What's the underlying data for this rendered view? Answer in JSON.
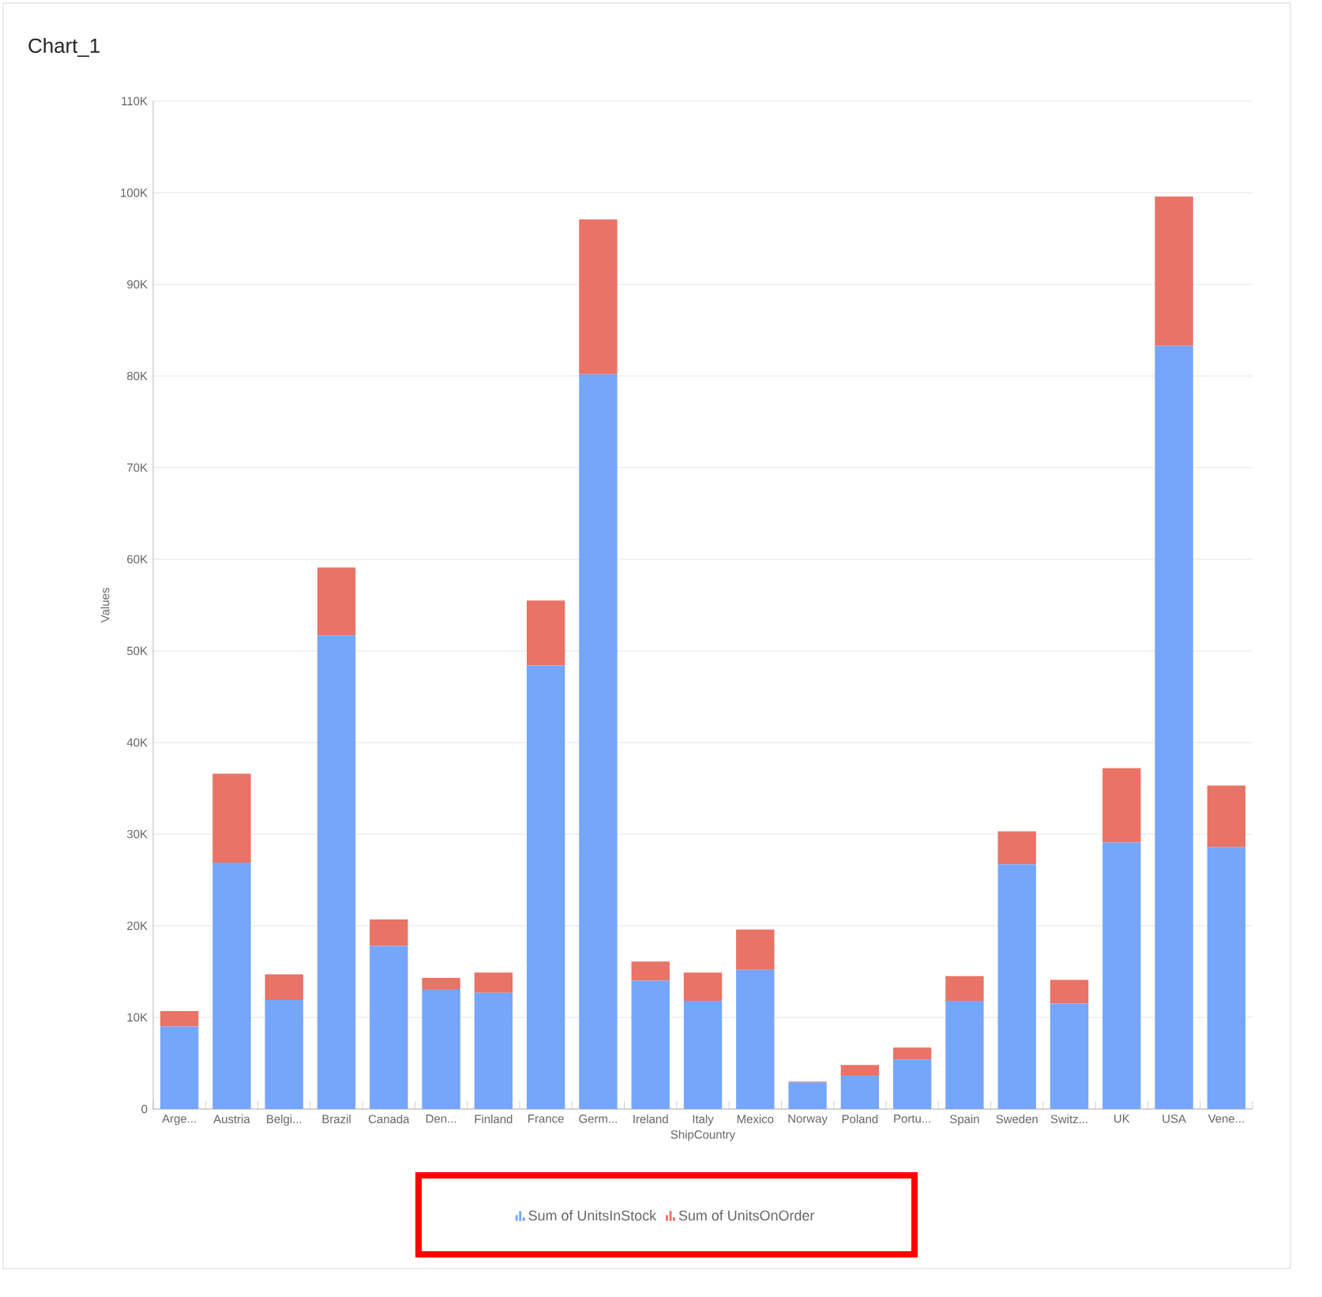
{
  "chart_data": {
    "type": "bar",
    "title": "Chart_1",
    "xlabel": "ShipCountry",
    "ylabel": "Values",
    "stacked": true,
    "legend": "bottom",
    "grid": "y",
    "categories": [
      "Arge...",
      "Austria",
      "Belgi...",
      "Brazil",
      "Canada",
      "Den...",
      "Finland",
      "France",
      "Germ...",
      "Ireland",
      "Italy",
      "Mexico",
      "Norway",
      "Poland",
      "Portu...",
      "Spain",
      "Sweden",
      "Switz...",
      "UK",
      "USA",
      "Vene..."
    ],
    "ylim": [
      0,
      110000
    ],
    "yticks": [
      {
        "value": 0,
        "label": "0"
      },
      {
        "value": 10000,
        "label": "10K"
      },
      {
        "value": 20000,
        "label": "20K"
      },
      {
        "value": 30000,
        "label": "30K"
      },
      {
        "value": 40000,
        "label": "40K"
      },
      {
        "value": 50000,
        "label": "50K"
      },
      {
        "value": 60000,
        "label": "60K"
      },
      {
        "value": 70000,
        "label": "70K"
      },
      {
        "value": 80000,
        "label": "80K"
      },
      {
        "value": 90000,
        "label": "90K"
      },
      {
        "value": 100000,
        "label": "100K"
      },
      {
        "value": 110000,
        "label": "110K"
      }
    ],
    "series": [
      {
        "name": "Sum of UnitsInStock",
        "color": "#76a6fb",
        "values": [
          9000,
          26900,
          11900,
          51700,
          17800,
          13100,
          12700,
          48400,
          80200,
          14000,
          11800,
          15200,
          2900,
          3700,
          5400,
          11800,
          26700,
          11500,
          29100,
          83300,
          28600
        ]
      },
      {
        "name": "Sum of UnitsOnOrder",
        "color": "#e87366",
        "values": [
          1700,
          9700,
          2800,
          7400,
          2900,
          1200,
          2200,
          7100,
          16900,
          2100,
          3100,
          4400,
          100,
          1100,
          1300,
          2700,
          3600,
          2600,
          8100,
          16300,
          6700
        ]
      }
    ]
  }
}
